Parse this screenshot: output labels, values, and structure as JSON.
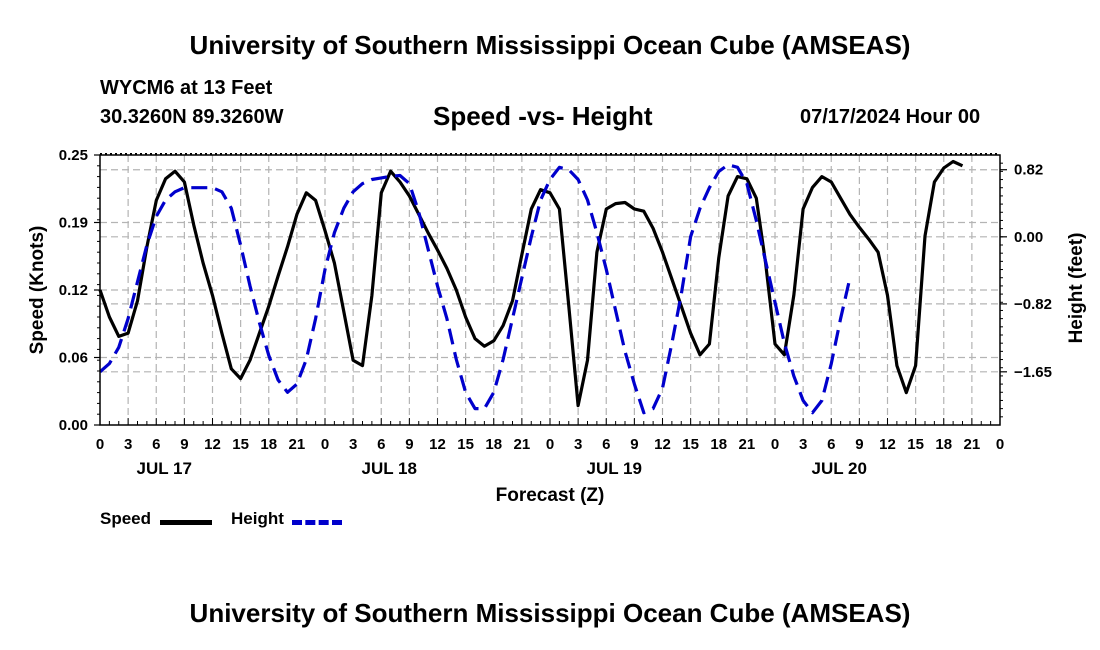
{
  "header": {
    "title": "University of Southern Mississippi Ocean Cube (AMSEAS)",
    "station": "WYCM6 at 13 Feet",
    "coordinates": "30.3260N  89.3260W",
    "datetime": "07/17/2024 Hour 00"
  },
  "footer": {
    "title": "University of Southern Mississippi Ocean Cube (AMSEAS)"
  },
  "legend": {
    "speed_label": "Speed",
    "height_label": "Height"
  },
  "chart_data": {
    "type": "line",
    "title": "Speed -vs- Height",
    "xlabel": "Forecast (Z)",
    "ylabel": "Speed (Knots)",
    "y2label": "Height (feet)",
    "xlim": [
      0,
      96
    ],
    "ylim": [
      0,
      0.25
    ],
    "y2lim": [
      -2.3,
      1.0
    ],
    "yticks": [
      {
        "value": 0.0,
        "label": "0.00"
      },
      {
        "value": 0.0625,
        "label": "0.06"
      },
      {
        "value": 0.125,
        "label": "0.12"
      },
      {
        "value": 0.1875,
        "label": "0.19"
      },
      {
        "value": 0.25,
        "label": "0.25"
      }
    ],
    "y2ticks": [
      {
        "value": 0.82,
        "label": "0.82"
      },
      {
        "value": 0.0,
        "label": "0.00"
      },
      {
        "value": -0.82,
        "label": "−0.82"
      },
      {
        "value": -1.65,
        "label": "−1.65"
      }
    ],
    "xtick_labels": [
      "0",
      "3",
      "6",
      "9",
      "12",
      "15",
      "18",
      "21",
      "0",
      "3",
      "6",
      "9",
      "12",
      "15",
      "18",
      "21",
      "0",
      "3",
      "6",
      "9",
      "12",
      "15",
      "18",
      "21",
      "0",
      "3",
      "6",
      "9",
      "12",
      "15",
      "18",
      "21",
      "0"
    ],
    "day_labels": [
      {
        "hour": 6,
        "label": "JUL 17"
      },
      {
        "hour": 30,
        "label": "JUL 18"
      },
      {
        "hour": 54,
        "label": "JUL 19"
      },
      {
        "hour": 78,
        "label": "JUL 20"
      }
    ],
    "grid": true,
    "series": [
      {
        "name": "Speed",
        "axis": "left",
        "color": "#000000",
        "style": "solid",
        "points": [
          [
            0,
            0.125
          ],
          [
            1,
            0.1
          ],
          [
            2,
            0.082
          ],
          [
            3,
            0.085
          ],
          [
            4,
            0.115
          ],
          [
            5,
            0.165
          ],
          [
            6,
            0.208
          ],
          [
            7,
            0.228
          ],
          [
            8,
            0.235
          ],
          [
            9,
            0.225
          ],
          [
            10,
            0.185
          ],
          [
            11,
            0.15
          ],
          [
            12,
            0.12
          ],
          [
            13,
            0.085
          ],
          [
            14,
            0.052
          ],
          [
            15,
            0.043
          ],
          [
            16,
            0.06
          ],
          [
            17,
            0.085
          ],
          [
            18,
            0.11
          ],
          [
            19,
            0.138
          ],
          [
            20,
            0.165
          ],
          [
            21,
            0.195
          ],
          [
            22,
            0.215
          ],
          [
            23,
            0.208
          ],
          [
            24,
            0.18
          ],
          [
            25,
            0.15
          ],
          [
            26,
            0.105
          ],
          [
            27,
            0.06
          ],
          [
            28,
            0.055
          ],
          [
            29,
            0.12
          ],
          [
            30,
            0.215
          ],
          [
            31,
            0.235
          ],
          [
            32,
            0.225
          ],
          [
            33,
            0.212
          ],
          [
            34,
            0.195
          ],
          [
            35,
            0.178
          ],
          [
            36,
            0.162
          ],
          [
            37,
            0.145
          ],
          [
            38,
            0.125
          ],
          [
            39,
            0.1
          ],
          [
            40,
            0.08
          ],
          [
            41,
            0.073
          ],
          [
            42,
            0.078
          ],
          [
            43,
            0.092
          ],
          [
            44,
            0.115
          ],
          [
            45,
            0.158
          ],
          [
            46,
            0.2
          ],
          [
            47,
            0.218
          ],
          [
            48,
            0.215
          ],
          [
            49,
            0.2
          ],
          [
            50,
            0.11
          ],
          [
            51,
            0.018
          ],
          [
            52,
            0.06
          ],
          [
            53,
            0.16
          ],
          [
            54,
            0.2
          ],
          [
            55,
            0.205
          ],
          [
            56,
            0.206
          ],
          [
            57,
            0.2
          ],
          [
            58,
            0.198
          ],
          [
            59,
            0.182
          ],
          [
            60,
            0.16
          ],
          [
            61,
            0.135
          ],
          [
            62,
            0.11
          ],
          [
            63,
            0.085
          ],
          [
            64,
            0.065
          ],
          [
            65,
            0.075
          ],
          [
            66,
            0.155
          ],
          [
            67,
            0.212
          ],
          [
            68,
            0.23
          ],
          [
            69,
            0.228
          ],
          [
            70,
            0.21
          ],
          [
            71,
            0.15
          ],
          [
            72,
            0.075
          ],
          [
            73,
            0.065
          ],
          [
            74,
            0.12
          ],
          [
            75,
            0.2
          ],
          [
            76,
            0.22
          ],
          [
            77,
            0.23
          ],
          [
            78,
            0.225
          ],
          [
            79,
            0.21
          ],
          [
            80,
            0.195
          ],
          [
            81,
            0.183
          ],
          [
            82,
            0.172
          ],
          [
            83,
            0.16
          ],
          [
            84,
            0.12
          ],
          [
            85,
            0.055
          ],
          [
            86,
            0.03
          ],
          [
            87,
            0.055
          ],
          [
            88,
            0.175
          ],
          [
            89,
            0.225
          ],
          [
            90,
            0.238
          ],
          [
            91,
            0.244
          ],
          [
            92,
            0.24
          ]
        ]
      },
      {
        "name": "Height",
        "axis": "right",
        "color": "#0000CC",
        "style": "dashed",
        "points": [
          [
            0,
            -1.65
          ],
          [
            1,
            -1.55
          ],
          [
            2,
            -1.35
          ],
          [
            3,
            -1.0
          ],
          [
            4,
            -0.55
          ],
          [
            5,
            -0.1
          ],
          [
            6,
            0.25
          ],
          [
            7,
            0.45
          ],
          [
            8,
            0.55
          ],
          [
            9,
            0.6
          ],
          [
            10,
            0.6
          ],
          [
            11,
            0.6
          ],
          [
            12,
            0.6
          ],
          [
            13,
            0.55
          ],
          [
            14,
            0.35
          ],
          [
            15,
            -0.1
          ],
          [
            16,
            -0.6
          ],
          [
            17,
            -1.05
          ],
          [
            18,
            -1.45
          ],
          [
            19,
            -1.75
          ],
          [
            20,
            -1.9
          ],
          [
            21,
            -1.8
          ],
          [
            22,
            -1.5
          ],
          [
            23,
            -1.0
          ],
          [
            24,
            -0.4
          ],
          [
            25,
            0.05
          ],
          [
            26,
            0.35
          ],
          [
            27,
            0.55
          ],
          [
            28,
            0.65
          ],
          [
            29,
            0.7
          ],
          [
            30,
            0.72
          ],
          [
            31,
            0.74
          ],
          [
            32,
            0.75
          ],
          [
            33,
            0.65
          ],
          [
            34,
            0.3
          ],
          [
            35,
            -0.15
          ],
          [
            36,
            -0.6
          ],
          [
            37,
            -1.0
          ],
          [
            38,
            -1.5
          ],
          [
            39,
            -1.9
          ],
          [
            40,
            -2.1
          ],
          [
            41,
            -2.1
          ],
          [
            42,
            -1.9
          ],
          [
            43,
            -1.5
          ],
          [
            44,
            -1.0
          ],
          [
            45,
            -0.5
          ],
          [
            46,
            0.0
          ],
          [
            47,
            0.45
          ],
          [
            48,
            0.7
          ],
          [
            49,
            0.85
          ],
          [
            50,
            0.82
          ],
          [
            51,
            0.7
          ],
          [
            52,
            0.45
          ],
          [
            53,
            0.05
          ],
          [
            54,
            -0.4
          ],
          [
            55,
            -0.9
          ],
          [
            56,
            -1.4
          ],
          [
            57,
            -1.8
          ],
          [
            58,
            -2.15
          ],
          [
            59,
            -2.1
          ],
          [
            60,
            -1.85
          ],
          [
            61,
            -1.3
          ],
          [
            62,
            -0.7
          ],
          [
            63,
            0.0
          ],
          [
            64,
            0.35
          ],
          [
            65,
            0.6
          ],
          [
            66,
            0.8
          ],
          [
            67,
            0.88
          ],
          [
            68,
            0.85
          ],
          [
            69,
            0.65
          ],
          [
            70,
            0.2
          ],
          [
            71,
            -0.3
          ],
          [
            72,
            -0.8
          ],
          [
            73,
            -1.3
          ],
          [
            74,
            -1.7
          ],
          [
            75,
            -2.0
          ],
          [
            76,
            -2.15
          ],
          [
            77,
            -2.0
          ],
          [
            78,
            -1.55
          ],
          [
            79,
            -1.0
          ],
          [
            80,
            -0.5
          ]
        ]
      }
    ]
  }
}
